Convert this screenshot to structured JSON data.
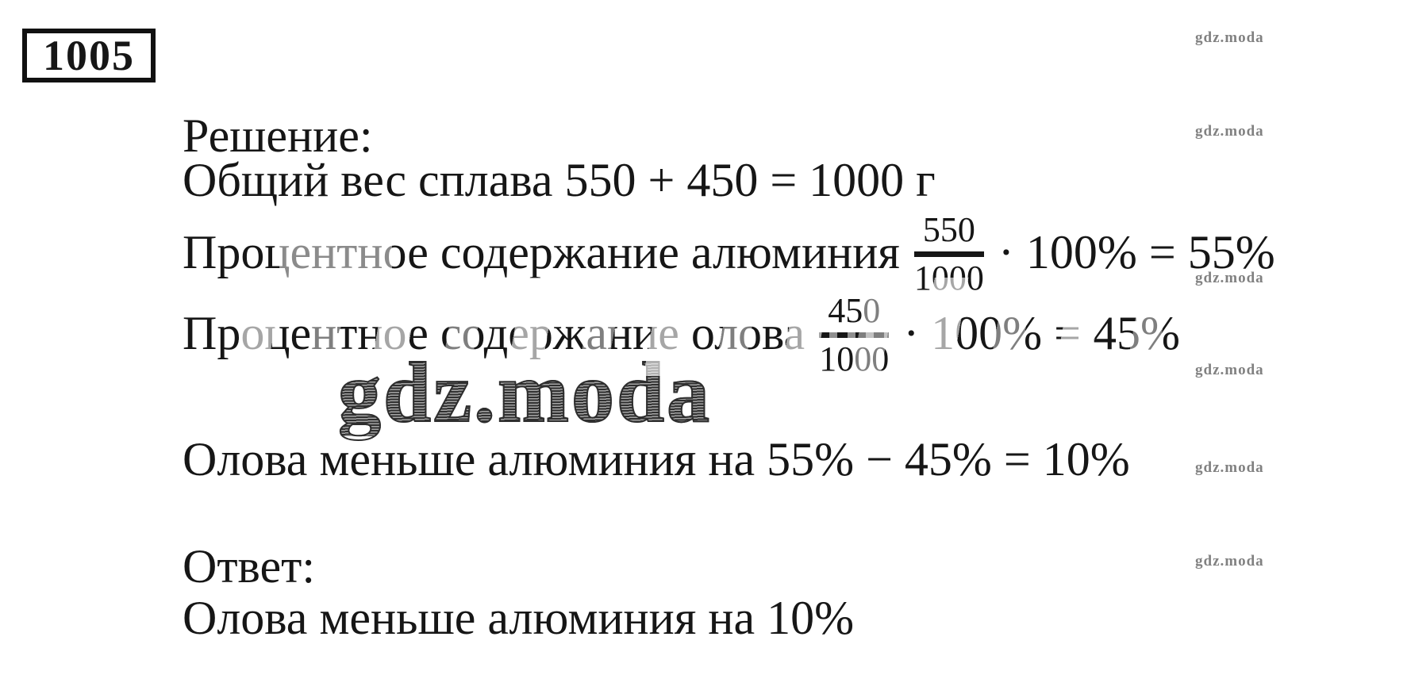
{
  "problem_number": "1005",
  "watermark": {
    "small_text": "gdz.moda",
    "large_text": "gdz.moda"
  },
  "solution": {
    "heading": "Решение:",
    "line_total": "Общий вес сплава 550 + 450 = 1000 г",
    "line_aluminum": {
      "before": "Процентное содержание алюминия",
      "numerator": "550",
      "denominator": "1000",
      "after": "· 100% = 55%"
    },
    "line_tin": {
      "before": "Процентное содержание олова",
      "numerator": "450",
      "denominator": "1000",
      "after": "· 100% = 45%"
    },
    "line_difference": "Олова меньше алюминия на 55% − 45% = 10%"
  },
  "answer": {
    "heading": "Ответ:",
    "text": "Олова меньше алюминия на 10%"
  }
}
